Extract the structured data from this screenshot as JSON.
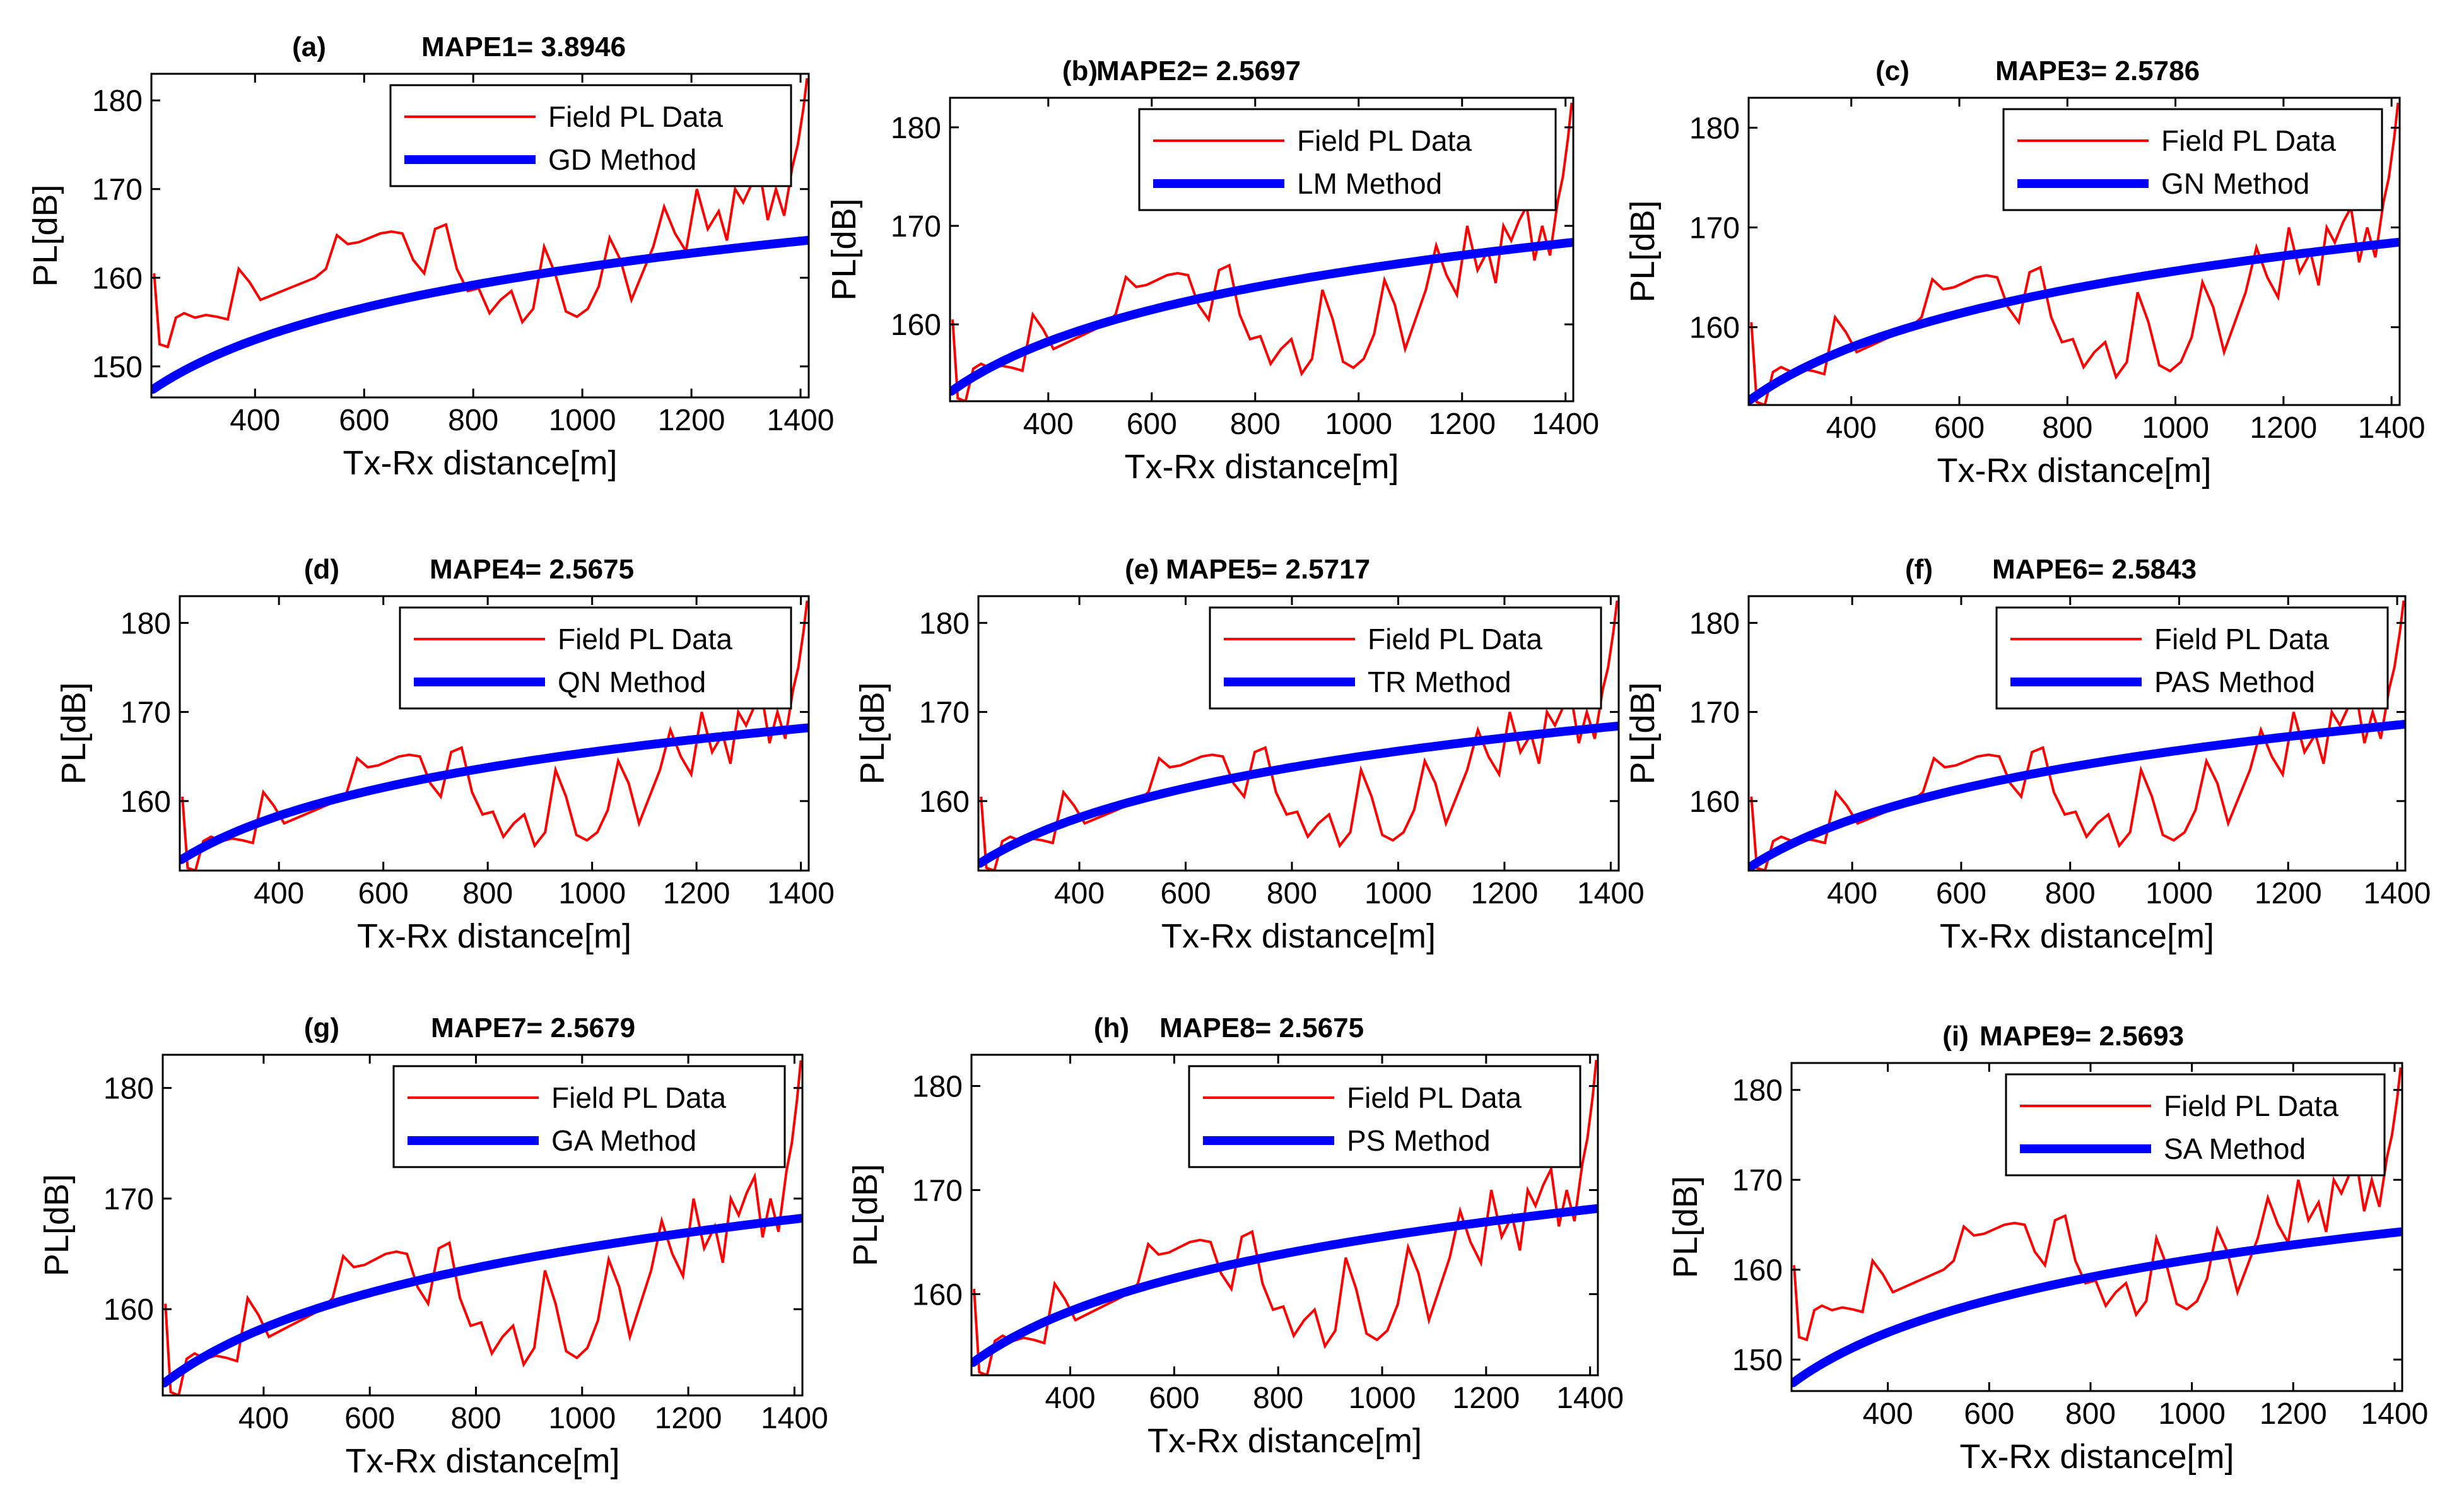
{
  "colors": {
    "field": "#ff0000",
    "model": "#0000ff",
    "axis": "#000000",
    "background": "#ffffff"
  },
  "chart_data": [
    {
      "type": "line",
      "panel": "(a)",
      "mape_label": "MAPE1= 3.8946",
      "xlabel": "Tx-Rx distance[m]",
      "ylabel": "PL[dB]",
      "xlim": [
        210,
        1415
      ],
      "ylim": [
        146.5,
        183
      ],
      "xticks": [
        400,
        600,
        800,
        1000,
        1200,
        1400
      ],
      "yticks": [
        150,
        160,
        170,
        180
      ],
      "legend": {
        "field": "Field PL Data",
        "model": "GD Method"
      },
      "model_curve": {
        "pl_at_215": 147.5,
        "pl_at_1410": 164.2
      }
    },
    {
      "type": "line",
      "panel": "(b)",
      "mape_label": "MAPE2= 2.5697",
      "xlabel": "Tx-Rx distance[m]",
      "ylabel": "PL[dB]",
      "xlim": [
        210,
        1415
      ],
      "ylim": [
        152.2,
        183
      ],
      "xticks": [
        400,
        600,
        800,
        1000,
        1200,
        1400
      ],
      "yticks": [
        160,
        170,
        180
      ],
      "legend": {
        "field": "Field PL Data",
        "model": "LM Method"
      },
      "model_curve": {
        "pl_at_215": 153.3,
        "pl_at_1410": 168.3
      }
    },
    {
      "type": "line",
      "panel": "(c)",
      "mape_label": "MAPE3= 2.5786",
      "xlabel": "Tx-Rx distance[m]",
      "ylabel": "PL[dB]",
      "xlim": [
        210,
        1415
      ],
      "ylim": [
        152.2,
        183
      ],
      "xticks": [
        400,
        600,
        800,
        1000,
        1200,
        1400
      ],
      "yticks": [
        160,
        170,
        180
      ],
      "legend": {
        "field": "Field PL Data",
        "model": "GN Method"
      },
      "model_curve": {
        "pl_at_215": 152.8,
        "pl_at_1410": 168.5
      }
    },
    {
      "type": "line",
      "panel": "(d)",
      "mape_label": "MAPE4= 2.5675",
      "xlabel": "Tx-Rx distance[m]",
      "ylabel": "PL[dB]",
      "xlim": [
        210,
        1415
      ],
      "ylim": [
        152.2,
        183
      ],
      "xticks": [
        400,
        600,
        800,
        1000,
        1200,
        1400
      ],
      "yticks": [
        160,
        170,
        180
      ],
      "legend": {
        "field": "Field PL Data",
        "model": "QN Method"
      },
      "model_curve": {
        "pl_at_215": 153.5,
        "pl_at_1410": 168.2
      }
    },
    {
      "type": "line",
      "panel": "(e)",
      "mape_label": "MAPE5= 2.5717",
      "xlabel": "Tx-Rx distance[m]",
      "ylabel": "PL[dB]",
      "xlim": [
        210,
        1415
      ],
      "ylim": [
        152.2,
        183
      ],
      "xticks": [
        400,
        600,
        800,
        1000,
        1200,
        1400
      ],
      "yticks": [
        160,
        170,
        180
      ],
      "legend": {
        "field": "Field PL Data",
        "model": "TR Method"
      },
      "model_curve": {
        "pl_at_215": 153.1,
        "pl_at_1410": 168.4
      }
    },
    {
      "type": "line",
      "panel": "(f)",
      "mape_label": "MAPE6= 2.5843",
      "xlabel": "Tx-Rx distance[m]",
      "ylabel": "PL[dB]",
      "xlim": [
        210,
        1415
      ],
      "ylim": [
        152.2,
        183
      ],
      "xticks": [
        400,
        600,
        800,
        1000,
        1200,
        1400
      ],
      "yticks": [
        160,
        170,
        180
      ],
      "legend": {
        "field": "Field PL Data",
        "model": "PAS Method"
      },
      "model_curve": {
        "pl_at_215": 152.7,
        "pl_at_1410": 168.6
      }
    },
    {
      "type": "line",
      "panel": "(g)",
      "mape_label": "MAPE7= 2.5679",
      "xlabel": "Tx-Rx distance[m]",
      "ylabel": "PL[dB]",
      "xlim": [
        210,
        1415
      ],
      "ylim": [
        152.2,
        183
      ],
      "xticks": [
        400,
        600,
        800,
        1000,
        1200,
        1400
      ],
      "yticks": [
        160,
        170,
        180
      ],
      "legend": {
        "field": "Field PL Data",
        "model": "GA Method"
      },
      "model_curve": {
        "pl_at_215": 153.4,
        "pl_at_1410": 168.2
      }
    },
    {
      "type": "line",
      "panel": "(h)",
      "mape_label": "MAPE8= 2.5675",
      "xlabel": "Tx-Rx distance[m]",
      "ylabel": "PL[dB]",
      "xlim": [
        210,
        1415
      ],
      "ylim": [
        152.2,
        183
      ],
      "xticks": [
        400,
        600,
        800,
        1000,
        1200,
        1400
      ],
      "yticks": [
        160,
        170,
        180
      ],
      "legend": {
        "field": "Field PL Data",
        "model": "PS Method"
      },
      "model_curve": {
        "pl_at_215": 153.5,
        "pl_at_1410": 168.2
      }
    },
    {
      "type": "line",
      "panel": "(i)",
      "mape_label": "MAPE9= 2.5693",
      "xlabel": "Tx-Rx distance[m]",
      "ylabel": "PL[dB]",
      "xlim": [
        210,
        1415
      ],
      "ylim": [
        146.5,
        183
      ],
      "xticks": [
        400,
        600,
        800,
        1000,
        1200,
        1400
      ],
      "yticks": [
        150,
        160,
        170,
        180
      ],
      "legend": {
        "field": "Field PL Data",
        "model": "SA Method"
      },
      "model_curve": {
        "pl_at_215": 147.5,
        "pl_at_1410": 164.2
      }
    }
  ],
  "field_data": {
    "x": [
      215,
      225,
      240,
      255,
      270,
      290,
      310,
      330,
      350,
      370,
      390,
      410,
      430,
      450,
      470,
      490,
      510,
      530,
      550,
      570,
      590,
      610,
      630,
      650,
      670,
      690,
      710,
      730,
      750,
      770,
      790,
      810,
      830,
      850,
      870,
      890,
      910,
      930,
      950,
      970,
      990,
      1010,
      1030,
      1050,
      1070,
      1090,
      1110,
      1130,
      1150,
      1170,
      1190,
      1210,
      1230,
      1250,
      1265,
      1280,
      1295,
      1310,
      1325,
      1340,
      1355,
      1370,
      1385,
      1395,
      1405,
      1412
    ],
    "pl": [
      160.5,
      152.5,
      152.2,
      155.5,
      156.0,
      155.5,
      155.8,
      155.6,
      155.3,
      161.0,
      159.5,
      157.5,
      158.0,
      158.5,
      159.0,
      159.5,
      160.0,
      161.0,
      164.8,
      163.8,
      164.0,
      164.5,
      165.0,
      165.2,
      165.0,
      162.0,
      160.5,
      165.5,
      166.0,
      161.0,
      158.5,
      158.8,
      156.0,
      157.5,
      158.5,
      155.0,
      156.5,
      163.5,
      160.5,
      156.2,
      155.6,
      156.5,
      159.0,
      164.5,
      162.0,
      157.5,
      160.5,
      163.5,
      168.0,
      165.0,
      163.0,
      170.0,
      165.5,
      167.5,
      164.2,
      170.0,
      168.5,
      170.5,
      172.0,
      166.5,
      170.0,
      167.0,
      172.5,
      175.0,
      179.0,
      182.5
    ]
  }
}
